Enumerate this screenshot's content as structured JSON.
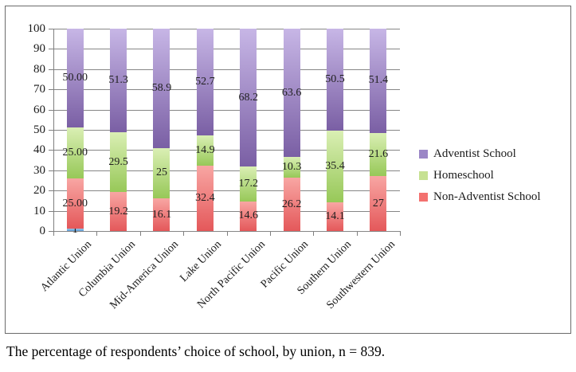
{
  "figure": {
    "caption": "The percentage of respondents’ choice of school, by union, n = 839."
  },
  "chart_data": {
    "type": "bar",
    "stacked": true,
    "title": "",
    "xlabel": "",
    "ylabel": "",
    "categories": [
      "Atlantic Union",
      "Columbia Union",
      "Mid-America Union",
      "Lake Union",
      "North Pacific Union",
      "Pacific Union",
      "Southern Union",
      "Southwestern Union"
    ],
    "series": [
      {
        "name": "",
        "key": "other-blue",
        "in_legend": false,
        "color_top": "#9cc6e8",
        "color_bottom": "#5b9bd5",
        "values": [
          1,
          0,
          0,
          0,
          0,
          0,
          0,
          0
        ],
        "labels": [
          "1",
          "",
          "",
          "",
          "",
          "",
          "",
          ""
        ]
      },
      {
        "name": "Non-Adventist School",
        "key": "non-adventist-school",
        "in_legend": true,
        "color_top": "#f8a6a3",
        "color_bottom": "#e4585a",
        "values": [
          25,
          19.2,
          16.1,
          32.4,
          14.6,
          26.2,
          14.1,
          27
        ],
        "labels": [
          "25.00",
          "19.2",
          "16.1",
          "32.4",
          "14.6",
          "26.2",
          "14.1",
          "27"
        ]
      },
      {
        "name": "Homeschool",
        "key": "homeschool",
        "in_legend": true,
        "color_top": "#daefb4",
        "color_bottom": "#97c858",
        "values": [
          25,
          29.5,
          25,
          14.9,
          17.2,
          10.3,
          35.4,
          21.6
        ],
        "labels": [
          "25.00",
          "29.5",
          "25",
          "14.9",
          "17.2",
          "10.3",
          "35.4",
          "21.6"
        ]
      },
      {
        "name": "Adventist School",
        "key": "adventist-school",
        "in_legend": true,
        "color_top": "#c7b6e6",
        "color_bottom": "#7a5fa4",
        "values": [
          50,
          51.3,
          58.9,
          52.7,
          68.2,
          63.6,
          50.5,
          51.4
        ],
        "labels": [
          "50.00",
          "51.3",
          "58.9",
          "52.7",
          "68.2",
          "63.6",
          "50.5",
          "51.4"
        ]
      }
    ],
    "legend": {
      "position": "right",
      "entries": [
        {
          "label": "Adventist School",
          "swatch": "#9b86c6"
        },
        {
          "label": "Homeschool",
          "swatch": "#c6e192"
        },
        {
          "label": "Non-Adventist School",
          "swatch": "#f3716f"
        }
      ]
    },
    "y_axis": {
      "min": 0,
      "max": 100,
      "tick_step": 10,
      "ticks": [
        0,
        10,
        20,
        30,
        40,
        50,
        60,
        70,
        80,
        90,
        100
      ]
    },
    "grid": true,
    "grid_color": "#868686",
    "axis_color": "#7f7f7f",
    "label_color": "#1f1f1f"
  }
}
